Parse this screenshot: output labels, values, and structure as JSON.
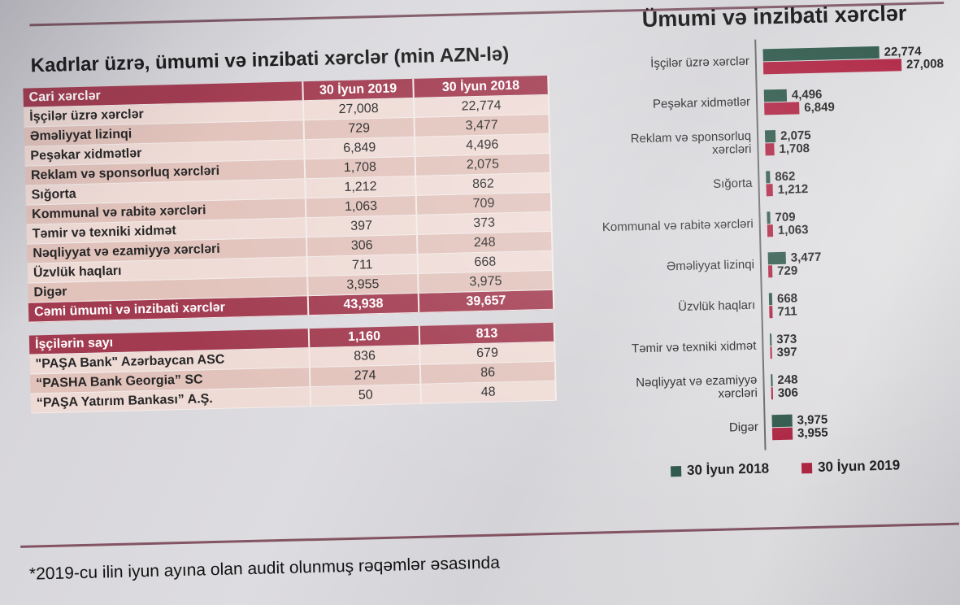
{
  "page": {
    "title": "Kadrlar üzrə, ümumi və inzibati xərclər (min AZN-lə)",
    "footnote": "*2019-cu ilin iyun ayına olan audit olunmuş rəqəmlər əsasında"
  },
  "expenses_table": {
    "header": {
      "label": "Cari xərclər",
      "col2019": "30 İyun 2019",
      "col2018": "30 İyun 2018"
    },
    "rows": [
      {
        "label": "İşçilər üzrə xərclər",
        "v2019": "27,008",
        "v2018": "22,774"
      },
      {
        "label": "Əməliyyat lizinqi",
        "v2019": "729",
        "v2018": "3,477"
      },
      {
        "label": "Peşəkar xidmətlər",
        "v2019": "6,849",
        "v2018": "4,496"
      },
      {
        "label": "Reklam və sponsorluq xərcləri",
        "v2019": "1,708",
        "v2018": "2,075"
      },
      {
        "label": "Sığorta",
        "v2019": "1,212",
        "v2018": "862"
      },
      {
        "label": "Kommunal və rabitə xərcləri",
        "v2019": "1,063",
        "v2018": "709"
      },
      {
        "label": "Təmir və texniki xidmət",
        "v2019": "397",
        "v2018": "373"
      },
      {
        "label": "Nəqliyyat və ezamiyyə xərcləri",
        "v2019": "306",
        "v2018": "248"
      },
      {
        "label": "Üzvlük haqları",
        "v2019": "711",
        "v2018": "668"
      },
      {
        "label": "Digər",
        "v2019": "3,955",
        "v2018": "3,975"
      }
    ],
    "total": {
      "label": "Cəmi ümumi və inzibati xərclər",
      "v2019": "43,938",
      "v2018": "39,657"
    }
  },
  "staff_table": {
    "header": {
      "label": "İşçilərin sayı",
      "v2019": "1,160",
      "v2018": "813"
    },
    "rows": [
      {
        "label": "\"PAŞA Bank\" Azərbaycan  ASC",
        "v2019": "836",
        "v2018": "679"
      },
      {
        "label": "“PASHA Bank Georgia” SC",
        "v2019": "274",
        "v2018": "86"
      },
      {
        "label": "“PAŞA Yatırım Bankası” A.Ş.",
        "v2019": "50",
        "v2018": "48"
      }
    ]
  },
  "chart_data": {
    "type": "bar",
    "orientation": "horizontal",
    "title": "Ümumi və inzibati xərclər",
    "categories": [
      "İşçilər üzrə xərclər",
      "Peşəkar xidmətlər",
      "Reklam və sponsorluq xərcləri",
      "Sığorta",
      "Kommunal və rabitə xərcləri",
      "Əməliyyat lizinqi",
      "Üzvlük haqları",
      "Təmir və texniki xidmət",
      "Nəqliyyat və ezamiyyə xərcləri",
      "Digər"
    ],
    "series": [
      {
        "name": "30 İyun 2018",
        "color": "#2a5547",
        "values": [
          22774,
          4496,
          2075,
          862,
          709,
          3477,
          668,
          373,
          248,
          3975
        ],
        "labels": [
          "22,774",
          "4,496",
          "2,075",
          "862",
          "709",
          "3,477",
          "668",
          "373",
          "248",
          "3,975"
        ]
      },
      {
        "name": "30 İyun 2019",
        "color": "#ad1f3e",
        "values": [
          27008,
          6849,
          1708,
          1212,
          1063,
          729,
          711,
          397,
          306,
          3955
        ],
        "labels": [
          "27,008",
          "6,849",
          "1,708",
          "1,212",
          "1,063",
          "729",
          "711",
          "397",
          "306",
          "3,955"
        ]
      }
    ],
    "xlim": [
      0,
      27008
    ],
    "value_labels": true,
    "legend_position": "bottom",
    "grid": false
  },
  "colors": {
    "table_header_red": "#a23b50",
    "bar_green_2018": "#2a5547",
    "bar_red_2019": "#ad1f3e",
    "row_light": "#efdbd6",
    "row_dark": "#e2c3bc"
  }
}
